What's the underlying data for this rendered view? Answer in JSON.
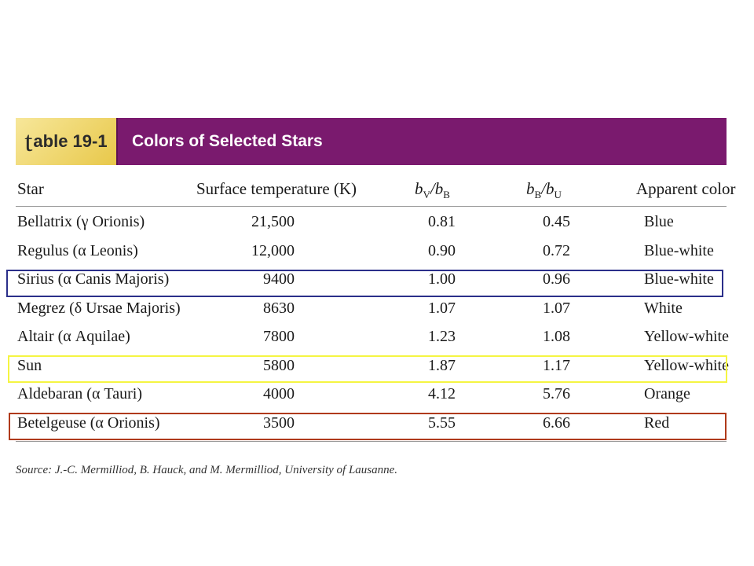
{
  "table": {
    "tab_label_t": "t",
    "tab_label_rest": "able 19-1",
    "title": "Colors of Selected Stars",
    "headers": {
      "star": "Star",
      "temp": "Surface temperature (K)",
      "bvbb_b1": "b",
      "bvbb_s1": "V",
      "bvbb_mid": "/b",
      "bvbb_s2": "B",
      "bbbu_b1": "b",
      "bbbu_s1": "B",
      "bbbu_mid": "/b",
      "bbbu_s2": "U",
      "color": "Apparent color"
    },
    "rows": [
      {
        "star": "Bellatrix (γ Orionis)",
        "temp": "21,500",
        "bvbb": "0.81",
        "bbbu": "0.45",
        "color": "Blue"
      },
      {
        "star": "Regulus (α Leonis)",
        "temp": "12,000",
        "bvbb": "0.90",
        "bbbu": "0.72",
        "color": "Blue-white"
      },
      {
        "star": "Sirius (α Canis Majoris)",
        "temp": "9400",
        "bvbb": "1.00",
        "bbbu": "0.96",
        "color": "Blue-white"
      },
      {
        "star": "Megrez (δ Ursae Majoris)",
        "temp": "8630",
        "bvbb": "1.07",
        "bbbu": "1.07",
        "color": "White"
      },
      {
        "star": "Altair (α Aquilae)",
        "temp": "7800",
        "bvbb": "1.23",
        "bbbu": "1.08",
        "color": "Yellow-white"
      },
      {
        "star": "Sun",
        "temp": "5800",
        "bvbb": "1.87",
        "bbbu": "1.17",
        "color": "Yellow-white"
      },
      {
        "star": "Aldebaran (α Tauri)",
        "temp": "4000",
        "bvbb": "4.12",
        "bbbu": "5.76",
        "color": "Orange"
      },
      {
        "star": "Betelgeuse (α Orionis)",
        "temp": "3500",
        "bvbb": "5.55",
        "bbbu": "6.66",
        "color": "Red"
      }
    ],
    "source": "Source: J.-C. Mermilliod, B. Hauck, and M. Mermilliod, University of Lausanne."
  },
  "highlights": {
    "sirius_color": "#2b2f8a",
    "sun_color": "#f5f542",
    "betelgeuse_color": "#b03a1a"
  },
  "colors": {
    "title_bar": "#7a1a6e",
    "tab_bg": "#f0d870"
  }
}
